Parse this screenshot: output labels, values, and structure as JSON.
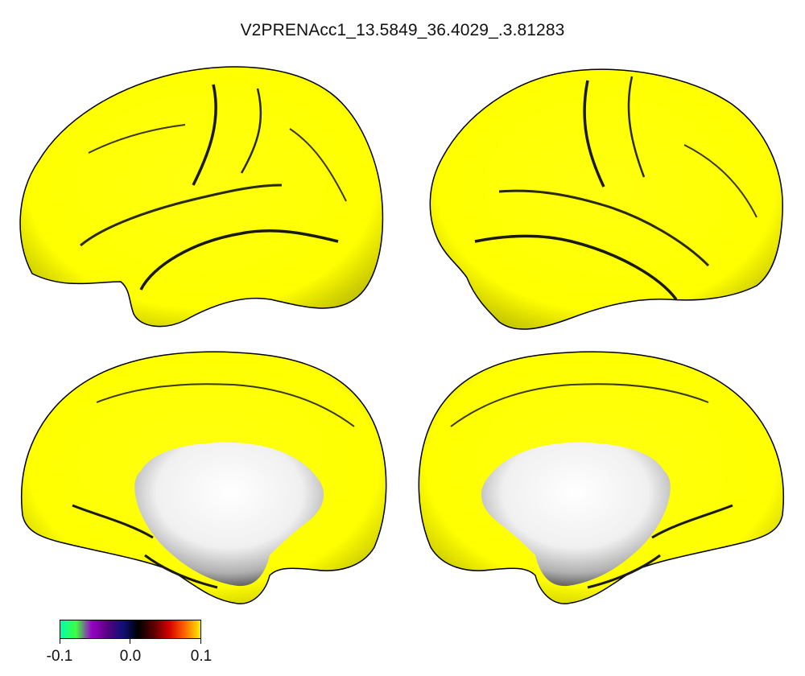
{
  "title": "V2PRENAcc1_13.5849_36.4029_.3.81283",
  "views": [
    {
      "name": "left-lateral",
      "hemisphere": "left",
      "view": "lateral"
    },
    {
      "name": "right-lateral",
      "hemisphere": "right",
      "view": "lateral"
    },
    {
      "name": "left-medial",
      "hemisphere": "left",
      "view": "medial"
    },
    {
      "name": "right-medial",
      "hemisphere": "right",
      "view": "medial"
    }
  ],
  "colors": {
    "surface_fill": "#ffff00",
    "surface_shade": "#5a5a00",
    "medial_wall": "#f2f2f2",
    "outline": "#000000"
  },
  "colorbar": {
    "min": -0.1,
    "max": 0.1,
    "tick_labels": [
      "-0.1",
      "0.0",
      "0.1"
    ],
    "tick_values": [
      -0.1,
      0.0,
      0.1
    ],
    "gradient_stops": [
      "#00ffb0",
      "#40ff40",
      "#9a00c8",
      "#5a0080",
      "#10107a",
      "#000000",
      "#5a0000",
      "#d40000",
      "#ff6600",
      "#ffee00"
    ]
  }
}
